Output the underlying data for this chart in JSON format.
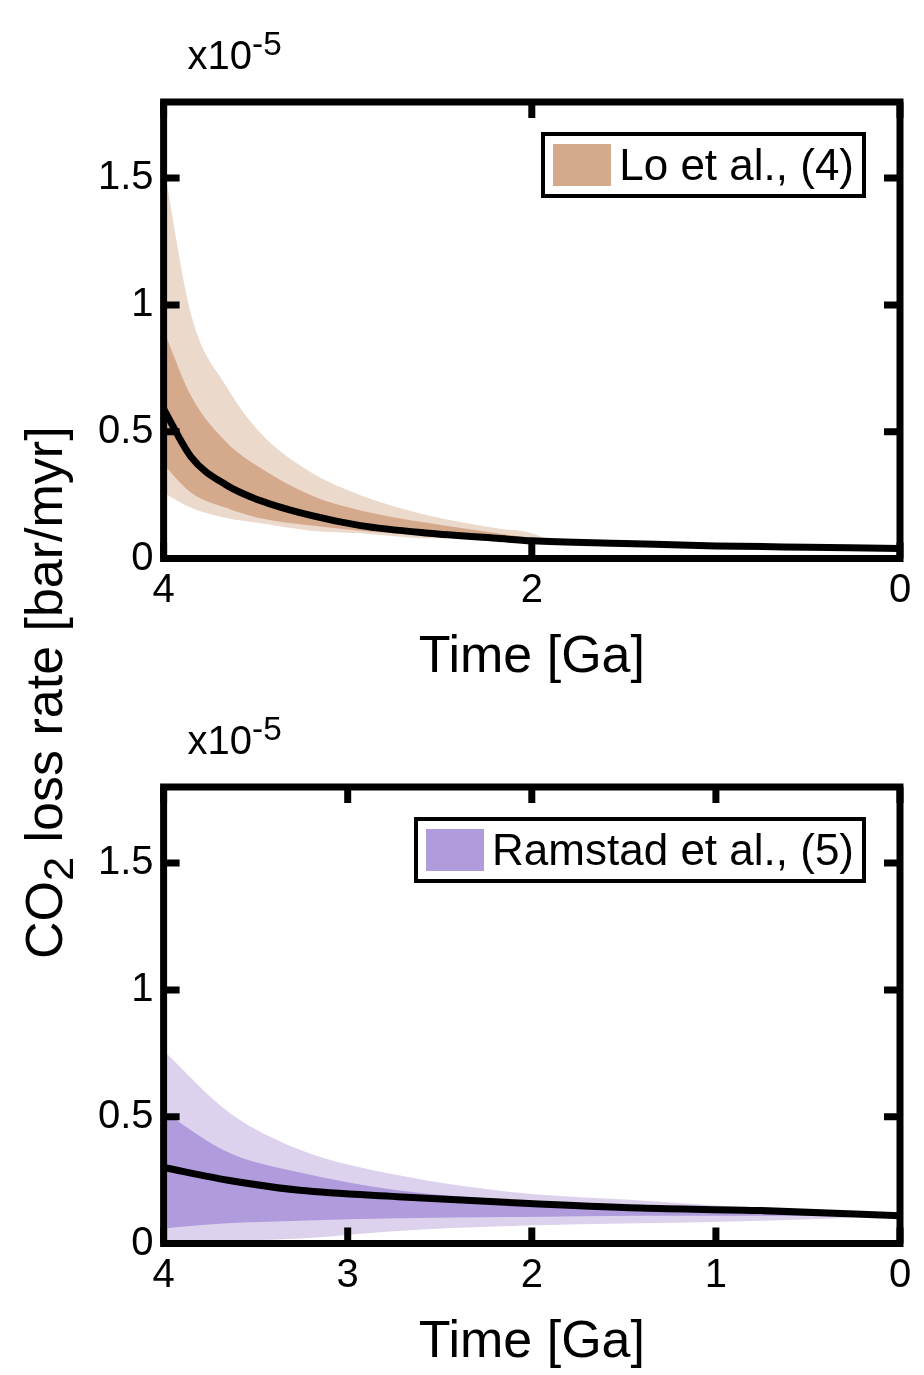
{
  "chart_data": [
    {
      "type": "line",
      "xlabel": "Time [Ga]",
      "ylabel": "CO$_{2}$ loss rate [bar/myr]",
      "annotations": [
        "x10$^{-5}$"
      ],
      "xlim": [
        4,
        0
      ],
      "xticks": [
        4,
        2,
        0
      ],
      "ylim": [
        0,
        1.8
      ],
      "yticks": [
        0,
        0.5,
        1,
        1.5
      ],
      "legend": "top right",
      "series": [
        {
          "type": "line",
          "color": "#ebd9cc",
          "x": [
            4,
            3.85,
            3.66,
            3.48,
            3.2,
            2.93,
            2.56,
            2.19,
            2,
            1.9
          ],
          "values": [
            null,
            null,
            null,
            null,
            null,
            null,
            null,
            null,
            null,
            null
          ],
          "lower": [
            0.26,
            0.2,
            0.16,
            0.14,
            0.11,
            0.1,
            0.08,
            0.08,
            0.07,
            0.07
          ],
          "upper": [
            1.55,
            0.96,
            0.68,
            0.5,
            0.34,
            0.25,
            0.17,
            0.12,
            0.1,
            0.07
          ]
        },
        {
          "type": "line",
          "name": "Lo et al., (4)",
          "color": "#d5a98b",
          "x": [
            4,
            3.85,
            3.66,
            3.48,
            3.2,
            2.93,
            2.56,
            2.19,
            2,
            1.9
          ],
          "values": [
            null,
            null,
            null,
            null,
            null,
            null,
            null,
            null,
            null,
            null
          ],
          "lower": [
            0.37,
            0.26,
            0.2,
            0.16,
            0.13,
            0.11,
            0.09,
            0.08,
            0.07,
            0.07
          ],
          "upper": [
            0.9,
            0.64,
            0.46,
            0.36,
            0.25,
            0.19,
            0.14,
            0.1,
            0.08,
            0.07
          ]
        },
        {
          "type": "line",
          "color": "#000000",
          "x": [
            4,
            3.85,
            3.66,
            3.48,
            3.2,
            2.93,
            2.56,
            2.19,
            2,
            1.5,
            1,
            0.5,
            0
          ],
          "values": [
            0.59,
            0.4,
            0.29,
            0.23,
            0.17,
            0.13,
            0.1,
            0.08,
            0.07,
            0.06,
            0.05,
            0.045,
            0.04
          ]
        }
      ]
    },
    {
      "type": "line",
      "xlabel": "Time [Ga]",
      "annotations": [
        "x10$^{-5}$"
      ],
      "xlim": [
        4,
        0
      ],
      "xticks": [
        4,
        3,
        2,
        1,
        0
      ],
      "ylim": [
        0,
        1.8
      ],
      "yticks": [
        0,
        0.5,
        1,
        1.5
      ],
      "legend": "top right",
      "series": [
        {
          "type": "line",
          "color": "#dcd2ee",
          "x": [
            4,
            3.65,
            3.26,
            2.73,
            2.07,
            1.41,
            0.75,
            0
          ],
          "values": [
            null,
            null,
            null,
            null,
            null,
            null,
            null,
            null
          ],
          "lower": [
            0.005,
            0.01,
            0.02,
            0.05,
            0.07,
            0.08,
            0.09,
            0.11
          ],
          "upper": [
            0.76,
            0.52,
            0.37,
            0.27,
            0.2,
            0.17,
            0.14,
            0.12
          ]
        },
        {
          "type": "line",
          "name": "Ramstad et al., (5)",
          "color": "#b09cdc",
          "x": [
            4,
            3.65,
            3.26,
            2.73,
            2.07,
            1.41,
            0.75,
            0
          ],
          "values": [
            null,
            null,
            null,
            null,
            null,
            null,
            null,
            null
          ],
          "lower": [
            0.06,
            0.08,
            0.09,
            0.1,
            0.105,
            0.11,
            0.11,
            0.11
          ],
          "upper": [
            0.52,
            0.36,
            0.28,
            0.21,
            0.17,
            0.15,
            0.13,
            0.12
          ]
        },
        {
          "type": "line",
          "color": "#000000",
          "x": [
            4,
            3.65,
            3.26,
            2.73,
            2.07,
            1.41,
            0.75,
            0
          ],
          "values": [
            0.3,
            0.25,
            0.21,
            0.185,
            0.16,
            0.14,
            0.13,
            0.11
          ]
        }
      ]
    }
  ]
}
